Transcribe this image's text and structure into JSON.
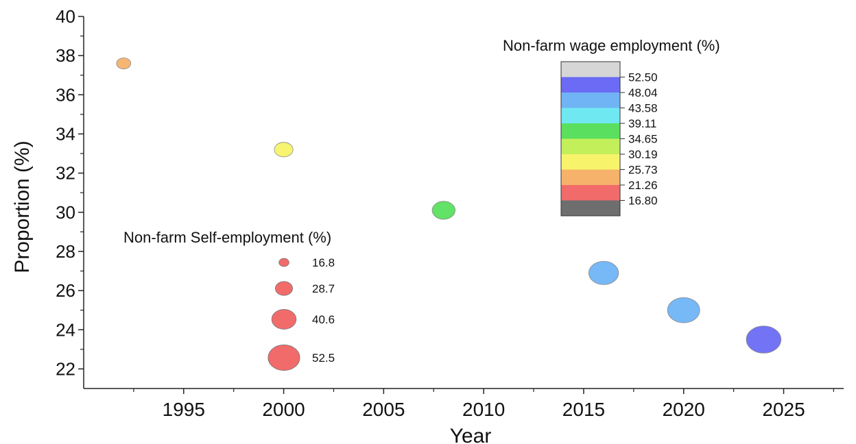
{
  "chart_data": {
    "type": "scatter",
    "title": "",
    "xlabel": "Year",
    "ylabel": "Proportion (%)",
    "xlim": [
      1990,
      2028
    ],
    "ylim": [
      21,
      40
    ],
    "x_ticks": [
      1995,
      2000,
      2005,
      2010,
      2015,
      2020,
      2025
    ],
    "y_ticks": [
      22,
      24,
      26,
      28,
      30,
      32,
      34,
      36,
      38,
      40
    ],
    "grid": false,
    "points": [
      {
        "x": 1992,
        "y": 37.6,
        "size": 16.8,
        "color_value": 21.26
      },
      {
        "x": 2000,
        "y": 33.2,
        "size": 24,
        "color_value": 25.73
      },
      {
        "x": 2008,
        "y": 30.1,
        "size": 31,
        "color_value": 34.65
      },
      {
        "x": 2016,
        "y": 26.9,
        "size": 42,
        "color_value": 43.58
      },
      {
        "x": 2020,
        "y": 25.0,
        "size": 46,
        "color_value": 43.58
      },
      {
        "x": 2024,
        "y": 23.5,
        "size": 50,
        "color_value": 48.04
      }
    ],
    "size_legend": {
      "title": "Non-farm Self-employment (%)",
      "entries": [
        "16.8",
        "28.7",
        "40.6",
        "52.5"
      ],
      "values": [
        16.8,
        28.7,
        40.6,
        52.5
      ],
      "color": "#f26b6b"
    },
    "color_legend": {
      "title": "Non-farm wage employment (%)",
      "labels": [
        "52.50",
        "48.04",
        "43.58",
        "39.11",
        "34.65",
        "30.19",
        "25.73",
        "21.26",
        "16.80"
      ],
      "bands": [
        "#d6d6d6",
        "#6b6bf5",
        "#70b4f5",
        "#6fe8f2",
        "#5ae05e",
        "#c2ef5a",
        "#f7f36a",
        "#f6b26b",
        "#f26b6b",
        "#6e6e6e"
      ]
    }
  }
}
